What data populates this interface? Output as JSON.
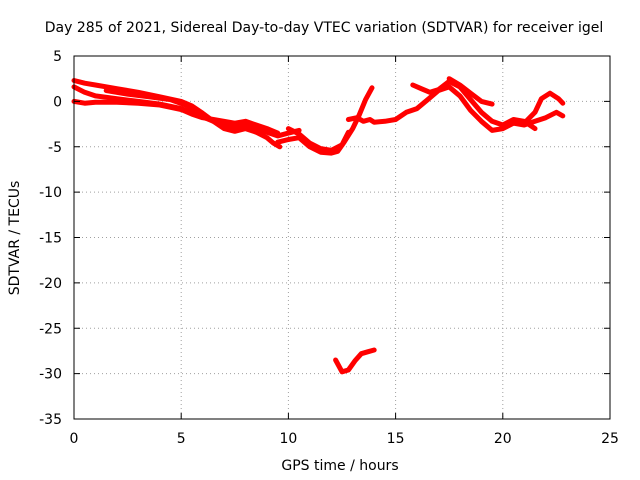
{
  "chart_data": {
    "type": "line",
    "title": "Day 285 of 2021, Sidereal Day-to-day VTEC variation (SDTVAR) for receiver igel",
    "xlabel": "GPS time / hours",
    "ylabel": "SDTVAR / TECUs",
    "xlim": [
      0,
      25
    ],
    "ylim": [
      -35,
      5
    ],
    "xticks": [
      0,
      5,
      10,
      15,
      20,
      25
    ],
    "yticks": [
      5,
      0,
      -5,
      -10,
      -15,
      -20,
      -25,
      -30,
      -35
    ],
    "grid": true,
    "legend": "none",
    "color": "#ff0000",
    "series": [
      {
        "name": "arc-1",
        "x": [
          0,
          0.5,
          1,
          2,
          3,
          4,
          5,
          5.5,
          6,
          6.5,
          7,
          7.5,
          8,
          8.5,
          9,
          9.3,
          9.6
        ],
        "y": [
          2.3,
          2.0,
          1.8,
          1.4,
          1.0,
          0.5,
          0.0,
          -0.5,
          -1.3,
          -2.2,
          -3.0,
          -3.3,
          -3.0,
          -3.4,
          -4.0,
          -4.6,
          -5.0
        ]
      },
      {
        "name": "arc-2",
        "x": [
          0,
          0.5,
          1,
          2,
          3,
          4,
          5,
          5.5,
          6,
          6.5,
          7,
          7.5,
          8,
          8.5,
          9,
          9.5,
          10,
          10.5
        ],
        "y": [
          1.6,
          1.0,
          0.6,
          0.3,
          0.0,
          -0.3,
          -0.8,
          -1.2,
          -1.7,
          -2.2,
          -2.6,
          -2.9,
          -2.6,
          -3.0,
          -3.4,
          -3.8,
          -3.5,
          -3.2
        ]
      },
      {
        "name": "arc-3",
        "x": [
          0,
          0.5,
          1,
          2,
          3,
          4,
          5,
          5.5,
          6,
          6.5,
          7,
          7.5,
          8,
          8.5,
          9,
          9.5
        ],
        "y": [
          0.0,
          -0.2,
          -0.1,
          -0.1,
          -0.2,
          -0.4,
          -0.9,
          -1.4,
          -1.8,
          -2.0,
          -2.2,
          -2.4,
          -2.2,
          -2.6,
          -3.0,
          -3.5
        ]
      },
      {
        "name": "arc-4",
        "x": [
          1.5,
          2.5,
          3.5,
          4.5,
          5.2,
          5.6
        ],
        "y": [
          1.2,
          0.8,
          0.5,
          0.2,
          -0.4,
          -0.8
        ]
      },
      {
        "name": "arc-5",
        "x": [
          9.5,
          10,
          10.5,
          11,
          11.5,
          12,
          12.3,
          12.6,
          13,
          13.3,
          13.6,
          13.9
        ],
        "y": [
          -4.5,
          -4.2,
          -4.0,
          -5.0,
          -5.6,
          -5.7,
          -5.5,
          -4.5,
          -3.0,
          -1.5,
          0.2,
          1.5
        ]
      },
      {
        "name": "arc-6",
        "x": [
          10,
          10.5,
          11,
          11.5,
          12,
          12.5,
          12.8
        ],
        "y": [
          -3.0,
          -3.6,
          -4.6,
          -5.2,
          -5.4,
          -4.8,
          -3.4
        ]
      },
      {
        "name": "arc-7",
        "x": [
          12.8,
          13.2,
          13.5,
          13.8,
          14,
          14.5,
          15,
          15.5,
          16,
          16.5,
          17,
          17.5,
          18,
          18.5,
          19,
          19.5,
          20,
          20.5,
          21,
          21.5,
          22,
          22.5,
          22.8
        ],
        "y": [
          -2.0,
          -1.8,
          -2.2,
          -2.0,
          -2.3,
          -2.2,
          -2.0,
          -1.2,
          -0.8,
          0.2,
          1.2,
          1.6,
          0.6,
          -1.0,
          -2.2,
          -3.2,
          -3.0,
          -2.4,
          -2.6,
          -2.2,
          -1.8,
          -1.2,
          -1.6
        ]
      },
      {
        "name": "arc-8",
        "x": [
          15.8,
          16.2,
          16.6,
          17,
          17.5,
          18,
          18.5,
          19,
          19.5,
          20,
          20.5,
          21,
          21.5
        ],
        "y": [
          1.8,
          1.4,
          1.0,
          1.3,
          2.2,
          1.6,
          0.2,
          -1.2,
          -2.2,
          -2.6,
          -2.0,
          -2.2,
          -3.0
        ]
      },
      {
        "name": "arc-9",
        "x": [
          17.5,
          18,
          18.5,
          19,
          19.5
        ],
        "y": [
          2.5,
          1.8,
          0.9,
          0.0,
          -0.3
        ]
      },
      {
        "name": "arc-10",
        "x": [
          21,
          21.5,
          21.8,
          22.2,
          22.6,
          22.8
        ],
        "y": [
          -2.4,
          -1.2,
          0.3,
          0.9,
          0.3,
          -0.2
        ]
      },
      {
        "name": "arc-11",
        "x": [
          12.2,
          12.5,
          12.8,
          13.1,
          13.4,
          13.7,
          14.0
        ],
        "y": [
          -28.5,
          -29.8,
          -29.6,
          -28.6,
          -27.8,
          -27.6,
          -27.4
        ]
      }
    ]
  }
}
